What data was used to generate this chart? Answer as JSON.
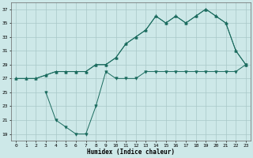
{
  "xlabel": "Humidex (Indice chaleur)",
  "bg_color": "#cde8e8",
  "grid_color": "#a8c8c8",
  "line_color": "#1a6b5e",
  "xlim": [
    -0.5,
    23.5
  ],
  "ylim": [
    18,
    38
  ],
  "yticks": [
    19,
    21,
    23,
    25,
    27,
    29,
    31,
    33,
    35,
    37
  ],
  "xticks": [
    0,
    1,
    2,
    3,
    4,
    5,
    6,
    7,
    8,
    9,
    10,
    11,
    12,
    13,
    14,
    15,
    16,
    17,
    18,
    19,
    20,
    21,
    22,
    23
  ],
  "line1_x": [
    0,
    1,
    2,
    3,
    4,
    5,
    6,
    7,
    8,
    9,
    10,
    11,
    12,
    13,
    14,
    15,
    16,
    17,
    18,
    19,
    20,
    21,
    22,
    23
  ],
  "line1_y": [
    27,
    27,
    27,
    27.5,
    28,
    28,
    28,
    28,
    29,
    29,
    30,
    32,
    33,
    34,
    36,
    35,
    36,
    35,
    36,
    37,
    36,
    35,
    31,
    29
  ],
  "line2_x": [
    0,
    1,
    2,
    3,
    4,
    5,
    6,
    7,
    8,
    9,
    10,
    11,
    12,
    13,
    14,
    15,
    16,
    17,
    18,
    19,
    20,
    21,
    22,
    23
  ],
  "line2_y": [
    27,
    27,
    27,
    27.5,
    28,
    28,
    28,
    28,
    29,
    29,
    30,
    32,
    33,
    34,
    36,
    35,
    36,
    35,
    36,
    37,
    36,
    35,
    31,
    29
  ],
  "line3_x": [
    3,
    4,
    5,
    6,
    7,
    8,
    9,
    10,
    11,
    12,
    13,
    14,
    15,
    16,
    17,
    18,
    19,
    20,
    21,
    22,
    23
  ],
  "line3_y": [
    25,
    21,
    20,
    19,
    19,
    23,
    28,
    27,
    27,
    27,
    28,
    28,
    28,
    28,
    28,
    28,
    28,
    28,
    28,
    28,
    29
  ]
}
